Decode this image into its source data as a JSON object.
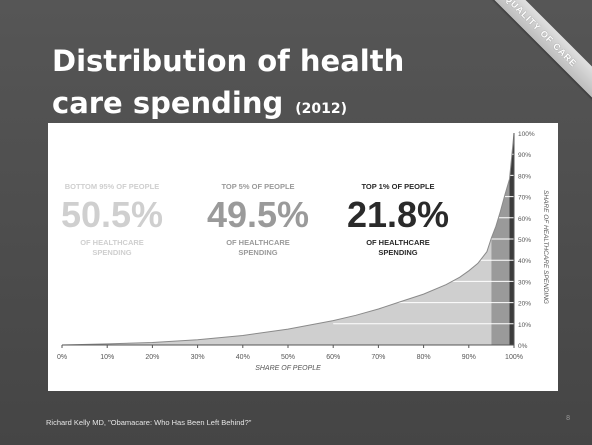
{
  "slide": {
    "title_line1": "Distribution of health",
    "title_line2": "care spending",
    "title_year": "(2012)",
    "ribbon": "QUALITY OF CARE",
    "footer": "Richard Kelly MD, \"Obamacare: Who Has Been Left Behind?\"",
    "page_number": "8"
  },
  "chart_data": {
    "type": "area",
    "title": "",
    "xlabel": "SHARE OF PEOPLE",
    "ylabel": "SHARE OF HEALTHCARE SPENDING",
    "xlim": [
      0,
      100
    ],
    "ylim": [
      0,
      100
    ],
    "x_ticks": [
      "0%",
      "10%",
      "20%",
      "30%",
      "40%",
      "50%",
      "60%",
      "70%",
      "80%",
      "90%",
      "100%"
    ],
    "y_ticks": [
      "0%",
      "10%",
      "20%",
      "30%",
      "40%",
      "50%",
      "60%",
      "70%",
      "80%",
      "90%",
      "100%"
    ],
    "x": [
      0,
      10,
      20,
      30,
      40,
      50,
      60,
      65,
      70,
      75,
      80,
      85,
      88,
      90,
      92,
      94,
      95,
      96,
      97,
      98,
      99,
      100
    ],
    "y": [
      0,
      0.5,
      1.2,
      2.5,
      4.5,
      7.5,
      11.5,
      14,
      17,
      20.5,
      24,
      28.5,
      32,
      35,
      38.5,
      44,
      50.5,
      56,
      63,
      71,
      78.2,
      100
    ],
    "segments": [
      {
        "name": "BOTTOM 95% OF PEOPLE",
        "range": [
          0,
          95
        ],
        "color": "#cfcfcf"
      },
      {
        "name": "TOP 5% OF PEOPLE",
        "range": [
          95,
          99
        ],
        "color": "#9a9a9a"
      },
      {
        "name": "TOP 1% OF PEOPLE",
        "range": [
          99,
          100
        ],
        "color": "#3c3c3c"
      }
    ],
    "annotations": [
      {
        "heading": "BOTTOM 95% OF PEOPLE",
        "value": "50.5%",
        "caption": "OF HEALTHCARE SPENDING",
        "color": "#cfcfcf"
      },
      {
        "heading": "TOP 5% OF PEOPLE",
        "value": "49.5%",
        "caption": "OF HEALTHCARE SPENDING",
        "color": "#9a9a9a"
      },
      {
        "heading": "TOP 1% OF PEOPLE",
        "value": "21.8%",
        "caption": "OF HEALTHCARE SPENDING",
        "color": "#2a2a2a"
      }
    ]
  }
}
